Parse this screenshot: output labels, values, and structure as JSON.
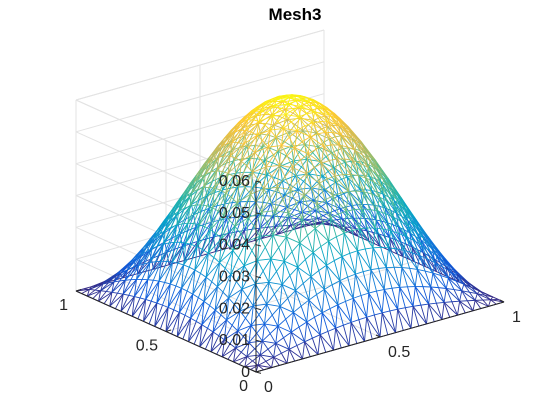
{
  "chart_data": {
    "type": "surface-mesh",
    "title": "Mesh3",
    "function": "0.0625 * sin(pi*x) * sin(pi*y)",
    "grid": {
      "x_range": [
        0,
        1
      ],
      "y_range": [
        0,
        1
      ],
      "z_peak": 0.0625,
      "samples": 33,
      "triangulated": true
    },
    "x_axis": {
      "lim": [
        0,
        1
      ],
      "ticks": [
        0,
        0.5,
        1
      ],
      "tick_labels": [
        "0",
        "0.5",
        "1"
      ]
    },
    "y_axis": {
      "lim": [
        0,
        1
      ],
      "ticks": [
        0,
        0.5,
        1
      ],
      "tick_labels": [
        "0",
        "0.5",
        "1"
      ]
    },
    "z_axis": {
      "lim": [
        0,
        0.06
      ],
      "ticks": [
        0,
        0.01,
        0.02,
        0.03,
        0.04,
        0.05,
        0.06
      ],
      "tick_labels": [
        "0",
        "0.01",
        "0.02",
        "0.03",
        "0.04",
        "0.05",
        "0.06"
      ]
    },
    "colormap": "parula",
    "colormap_stops": [
      "#352a87",
      "#0f5cdd",
      "#1481d6",
      "#06a4ca",
      "#2eb7a4",
      "#87bf77",
      "#d1bb59",
      "#fec832",
      "#f9fb0e"
    ],
    "grid_on": true,
    "view": "3d-default"
  }
}
